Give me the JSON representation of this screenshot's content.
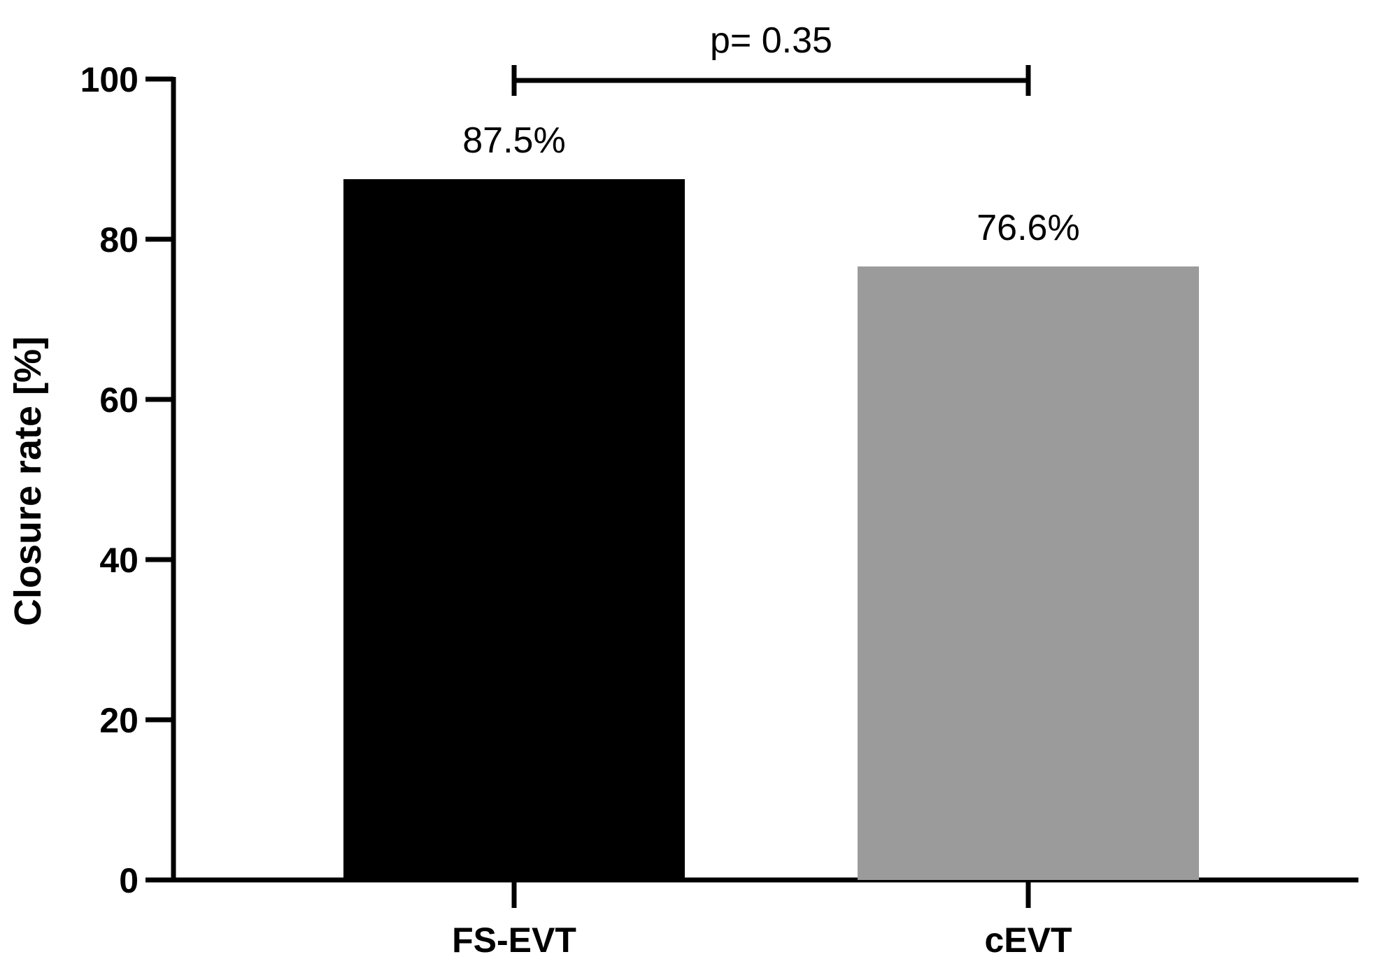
{
  "chart_data": {
    "type": "bar",
    "categories": [
      "FS-EVT",
      "cEVT"
    ],
    "values": [
      87.5,
      76.6
    ],
    "data_labels": [
      "87.5%",
      "76.6%"
    ],
    "colors": [
      "#000000",
      "#9b9b9b"
    ],
    "title": "",
    "xlabel": "",
    "ylabel": "Closure rate [%]",
    "ylim": [
      0,
      100
    ],
    "yticks": [
      0,
      20,
      40,
      60,
      80,
      100
    ],
    "grid": false,
    "legend": "none",
    "annotation": {
      "text": "p= 0.35",
      "from": "FS-EVT",
      "to": "cEVT",
      "y": 100
    }
  }
}
